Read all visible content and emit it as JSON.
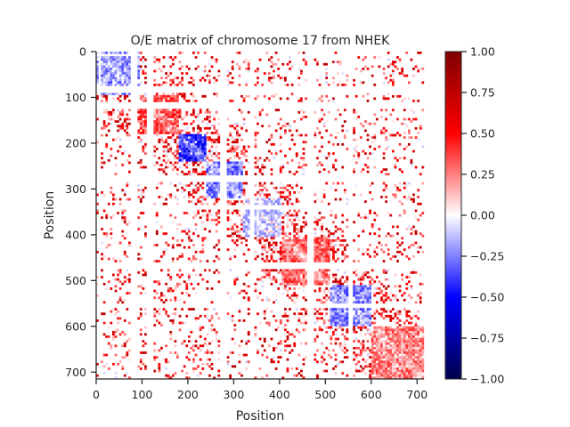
{
  "chart_data": {
    "type": "heatmap",
    "title": "O/E matrix of chromosome 17 from NHEK",
    "xlabel": "Position",
    "ylabel": "Position",
    "xlim": [
      0,
      715
    ],
    "ylim": [
      715,
      0
    ],
    "x_ticks": [
      "0",
      "100",
      "200",
      "300",
      "400",
      "500",
      "600",
      "700"
    ],
    "y_ticks": [
      "0",
      "100",
      "200",
      "300",
      "400",
      "500",
      "600",
      "700"
    ],
    "colorbar": {
      "colormap": "seismic",
      "vmin": -1.0,
      "vmax": 1.0,
      "ticks": [
        "1.00",
        "0.75",
        "0.50",
        "0.25",
        "0.00",
        "−0.25",
        "−0.50",
        "−0.75",
        "−1.00"
      ],
      "colors": [
        "#00004c",
        "#0000ff",
        "#ffffff",
        "#ff0000",
        "#7f0000"
      ]
    },
    "regions": [
      {
        "name": "domain",
        "start": 0,
        "end": 95,
        "value": -0.2
      },
      {
        "name": "domain",
        "start": 95,
        "end": 180,
        "value": 0.35
      },
      {
        "name": "domain",
        "start": 180,
        "end": 240,
        "value": -0.45
      },
      {
        "name": "domain",
        "start": 240,
        "end": 320,
        "value": -0.25
      },
      {
        "name": "domain",
        "start": 320,
        "end": 405,
        "value": -0.1
      },
      {
        "name": "domain",
        "start": 405,
        "end": 510,
        "value": 0.3
      },
      {
        "name": "domain",
        "start": 510,
        "end": 600,
        "value": -0.25
      },
      {
        "name": "domain",
        "start": 600,
        "end": 715,
        "value": 0.25
      }
    ],
    "blank_bands": [
      [
        5,
        10
      ],
      [
        75,
        90
      ],
      [
        110,
        125
      ],
      [
        270,
        285
      ],
      [
        335,
        345
      ],
      [
        460,
        475
      ],
      [
        550,
        560
      ]
    ]
  }
}
